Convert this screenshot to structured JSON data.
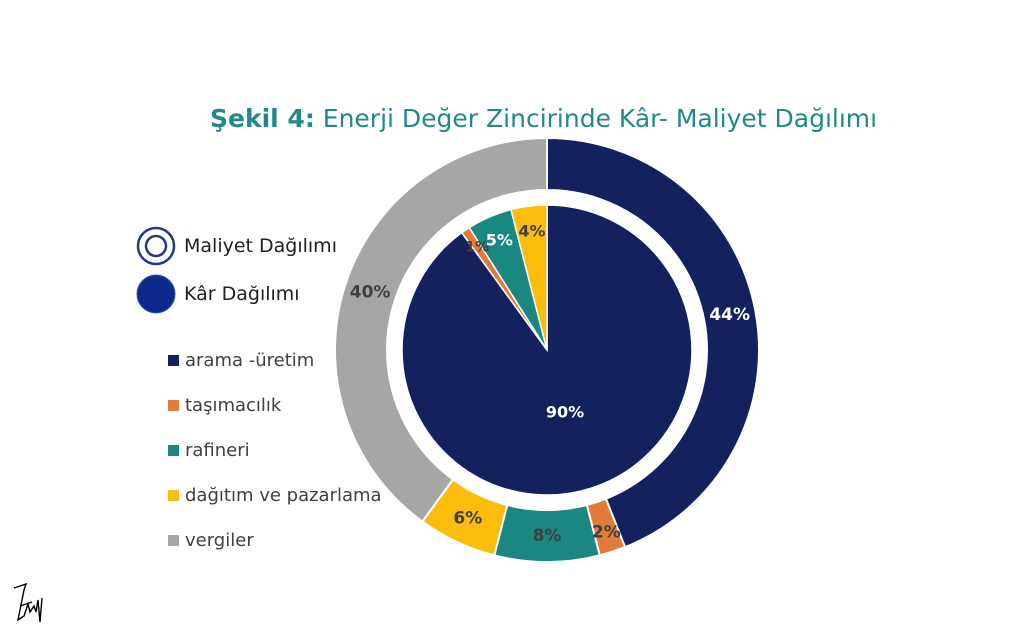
{
  "title": {
    "prefix": "Şekil 4:",
    "text": "Enerji Değer Zincirinde Kâr- Maliyet Dağılımı"
  },
  "ring_legend": {
    "outer_label": "Maliyet Dağılımı",
    "inner_label": "Kâr Dağılımı"
  },
  "colors": {
    "arama -üretim": "#13215e",
    "taşımacılık": "#e07b39",
    "rafineri": "#1a8780",
    "dağıtım ve pazarlama": "#fcbc0b",
    "vergiler": "#a6a6a6"
  },
  "chart_data": {
    "type": "donut",
    "title": "Şekil 4: Enerji Değer Zincirinde Kâr- Maliyet Dağılımı",
    "legend_position": "left",
    "categories": [
      "arama -üretim",
      "taşımacılık",
      "rafineri",
      "dağıtım ve pazarlama",
      "vergiler"
    ],
    "series": [
      {
        "name": "Maliyet Dağılımı",
        "ring": "outer",
        "values": [
          44,
          2,
          8,
          6,
          40
        ]
      },
      {
        "name": "Kâr Dağılımı",
        "ring": "inner",
        "values": [
          90,
          1,
          5,
          4,
          0
        ]
      }
    ]
  },
  "signature_text": "Lw"
}
